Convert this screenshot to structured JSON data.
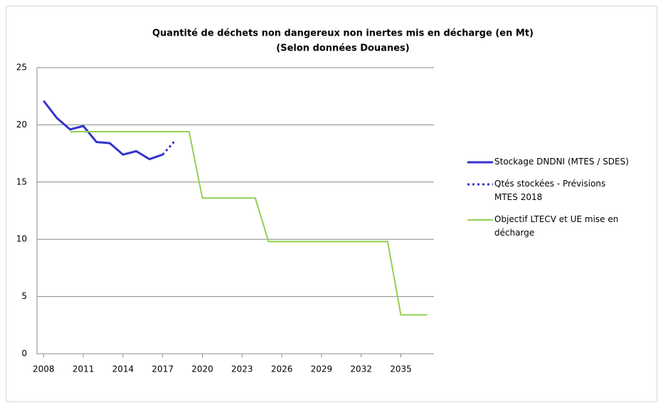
{
  "chart_data": {
    "type": "line",
    "title": "Quantité de déchets non dangereux non inertes mis en décharge (en Mt)",
    "subtitle": "(Selon données Douanes)",
    "xlim": [
      2007.5,
      2037.5
    ],
    "xticks": [
      2008,
      2011,
      2014,
      2017,
      2020,
      2023,
      2026,
      2029,
      2032,
      2035
    ],
    "ylim": [
      0,
      25
    ],
    "yticks": [
      0,
      5,
      10,
      15,
      20,
      25
    ],
    "grid": true,
    "legend": "right",
    "series": [
      {
        "name": "Stockage DNDNI (MTES / SDES)",
        "color": "#3333cc",
        "style": "solid",
        "x": [
          2008,
          2009,
          2010,
          2011,
          2012,
          2013,
          2014,
          2015,
          2016,
          2017
        ],
        "values": [
          22.1,
          20.6,
          19.6,
          19.9,
          18.5,
          18.4,
          17.4,
          17.7,
          17.0,
          17.4
        ]
      },
      {
        "name": "Qtés stockées - Prévisions MTES 2018",
        "color": "#3333cc",
        "style": "dotted",
        "x": [
          2017,
          2018
        ],
        "values": [
          17.4,
          18.7
        ]
      },
      {
        "name": "Objectif LTECV et UE mise en décharge",
        "color": "#92d050",
        "style": "solid",
        "x": [
          2010,
          2011,
          2012,
          2013,
          2014,
          2015,
          2016,
          2017,
          2018,
          2019,
          2020,
          2021,
          2022,
          2023,
          2024,
          2025,
          2026,
          2027,
          2028,
          2029,
          2030,
          2031,
          2032,
          2033,
          2034,
          2035,
          2036,
          2037
        ],
        "values": [
          19.4,
          19.4,
          19.4,
          19.4,
          19.4,
          19.4,
          19.4,
          19.4,
          19.4,
          19.4,
          13.6,
          13.6,
          13.6,
          13.6,
          13.6,
          9.8,
          9.8,
          9.8,
          9.8,
          9.8,
          9.8,
          9.8,
          9.8,
          9.8,
          9.8,
          3.4,
          3.4,
          3.4
        ]
      }
    ]
  }
}
